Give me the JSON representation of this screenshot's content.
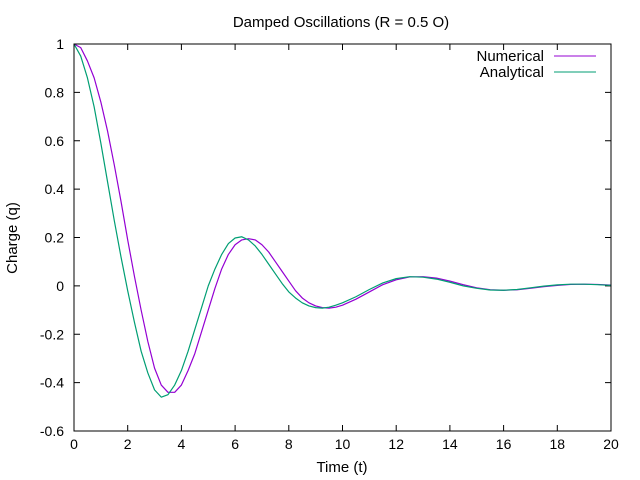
{
  "chart_data": {
    "type": "line",
    "title": "Damped Oscillations (R = 0.5 O)",
    "xlabel": "Time (t)",
    "ylabel": "Charge (q)",
    "xlim": [
      0,
      20
    ],
    "ylim": [
      -0.6,
      1
    ],
    "xticks": [
      "0",
      "2",
      "4",
      "6",
      "8",
      "10",
      "12",
      "14",
      "16",
      "18",
      "20"
    ],
    "yticks": [
      "1",
      "0.8",
      "0.6",
      "0.4",
      "0.2",
      "0",
      "-0.2",
      "-0.4",
      "-0.6"
    ],
    "grid": false,
    "legend_position": "top-right",
    "series": [
      {
        "name": "Numerical",
        "color": "#9400d3",
        "points": [
          [
            0,
            1.0
          ],
          [
            0.25,
            0.985
          ],
          [
            0.5,
            0.93
          ],
          [
            0.75,
            0.86
          ],
          [
            1,
            0.76
          ],
          [
            1.25,
            0.64
          ],
          [
            1.5,
            0.5
          ],
          [
            1.75,
            0.35
          ],
          [
            2,
            0.19
          ],
          [
            2.25,
            0.04
          ],
          [
            2.5,
            -0.1
          ],
          [
            2.75,
            -0.23
          ],
          [
            3,
            -0.34
          ],
          [
            3.25,
            -0.41
          ],
          [
            3.5,
            -0.44
          ],
          [
            3.75,
            -0.44
          ],
          [
            4,
            -0.41
          ],
          [
            4.25,
            -0.35
          ],
          [
            4.5,
            -0.28
          ],
          [
            4.75,
            -0.19
          ],
          [
            5,
            -0.1
          ],
          [
            5.25,
            -0.01
          ],
          [
            5.5,
            0.07
          ],
          [
            5.75,
            0.13
          ],
          [
            6,
            0.17
          ],
          [
            6.25,
            0.19
          ],
          [
            6.5,
            0.195
          ],
          [
            6.75,
            0.19
          ],
          [
            7,
            0.17
          ],
          [
            7.25,
            0.14
          ],
          [
            7.5,
            0.1
          ],
          [
            7.75,
            0.06
          ],
          [
            8,
            0.02
          ],
          [
            8.25,
            -0.02
          ],
          [
            8.5,
            -0.05
          ],
          [
            8.75,
            -0.07
          ],
          [
            9,
            -0.083
          ],
          [
            9.25,
            -0.09
          ],
          [
            9.5,
            -0.092
          ],
          [
            9.75,
            -0.088
          ],
          [
            10,
            -0.08
          ],
          [
            10.5,
            -0.055
          ],
          [
            11,
            -0.025
          ],
          [
            11.5,
            0.005
          ],
          [
            12,
            0.025
          ],
          [
            12.5,
            0.037
          ],
          [
            13,
            0.038
          ],
          [
            13.5,
            0.032
          ],
          [
            14,
            0.02
          ],
          [
            14.5,
            0.005
          ],
          [
            15,
            -0.008
          ],
          [
            15.5,
            -0.016
          ],
          [
            16,
            -0.018
          ],
          [
            16.5,
            -0.016
          ],
          [
            17,
            -0.01
          ],
          [
            17.5,
            -0.003
          ],
          [
            18,
            0.002
          ],
          [
            18.5,
            0.006
          ],
          [
            19,
            0.007
          ],
          [
            19.5,
            0.006
          ],
          [
            20,
            0.003
          ]
        ]
      },
      {
        "name": "Analytical",
        "color": "#009e73",
        "points": [
          [
            0,
            1.0
          ],
          [
            0.25,
            0.95
          ],
          [
            0.5,
            0.86
          ],
          [
            0.75,
            0.74
          ],
          [
            1,
            0.59
          ],
          [
            1.25,
            0.43
          ],
          [
            1.5,
            0.27
          ],
          [
            1.75,
            0.12
          ],
          [
            2,
            -0.02
          ],
          [
            2.25,
            -0.15
          ],
          [
            2.5,
            -0.27
          ],
          [
            2.75,
            -0.36
          ],
          [
            3,
            -0.43
          ],
          [
            3.25,
            -0.46
          ],
          [
            3.5,
            -0.45
          ],
          [
            3.75,
            -0.41
          ],
          [
            4,
            -0.35
          ],
          [
            4.25,
            -0.27
          ],
          [
            4.5,
            -0.18
          ],
          [
            4.75,
            -0.09
          ],
          [
            5,
            0.0
          ],
          [
            5.25,
            0.07
          ],
          [
            5.5,
            0.13
          ],
          [
            5.75,
            0.175
          ],
          [
            6,
            0.198
          ],
          [
            6.25,
            0.203
          ],
          [
            6.5,
            0.19
          ],
          [
            6.75,
            0.165
          ],
          [
            7,
            0.13
          ],
          [
            7.25,
            0.09
          ],
          [
            7.5,
            0.05
          ],
          [
            7.75,
            0.01
          ],
          [
            8,
            -0.025
          ],
          [
            8.25,
            -0.05
          ],
          [
            8.5,
            -0.07
          ],
          [
            8.75,
            -0.083
          ],
          [
            9,
            -0.09
          ],
          [
            9.25,
            -0.092
          ],
          [
            9.5,
            -0.088
          ],
          [
            9.75,
            -0.08
          ],
          [
            10,
            -0.07
          ],
          [
            10.5,
            -0.045
          ],
          [
            11,
            -0.015
          ],
          [
            11.5,
            0.012
          ],
          [
            12,
            0.03
          ],
          [
            12.5,
            0.038
          ],
          [
            13,
            0.036
          ],
          [
            13.5,
            0.028
          ],
          [
            14,
            0.015
          ],
          [
            14.5,
            0.0
          ],
          [
            15,
            -0.01
          ],
          [
            15.5,
            -0.017
          ],
          [
            16,
            -0.018
          ],
          [
            16.5,
            -0.015
          ],
          [
            17,
            -0.008
          ],
          [
            17.5,
            -0.001
          ],
          [
            18,
            0.004
          ],
          [
            18.5,
            0.007
          ],
          [
            19,
            0.007
          ],
          [
            19.5,
            0.005
          ],
          [
            20,
            0.002
          ]
        ]
      }
    ]
  }
}
